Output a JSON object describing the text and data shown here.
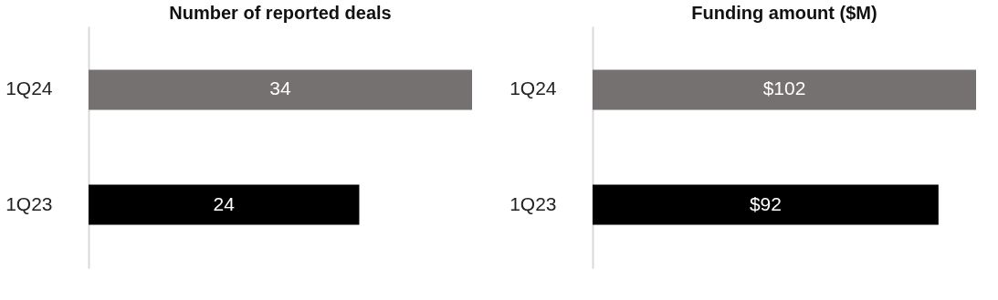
{
  "chart_data": [
    {
      "type": "bar",
      "orientation": "horizontal",
      "title": "Number of reported deals",
      "categories": [
        "1Q24",
        "1Q23"
      ],
      "values": [
        34,
        24
      ],
      "colors": [
        "#767171",
        "#000000"
      ],
      "data_labels": true,
      "grid": false
    },
    {
      "type": "bar",
      "orientation": "horizontal",
      "title": "Funding amount ($M)",
      "categories": [
        "1Q24",
        "1Q23"
      ],
      "values": [
        102,
        92
      ],
      "colors": [
        "#767171",
        "#000000"
      ],
      "value_labels": [
        "$102",
        "$92"
      ],
      "grid": false
    }
  ]
}
